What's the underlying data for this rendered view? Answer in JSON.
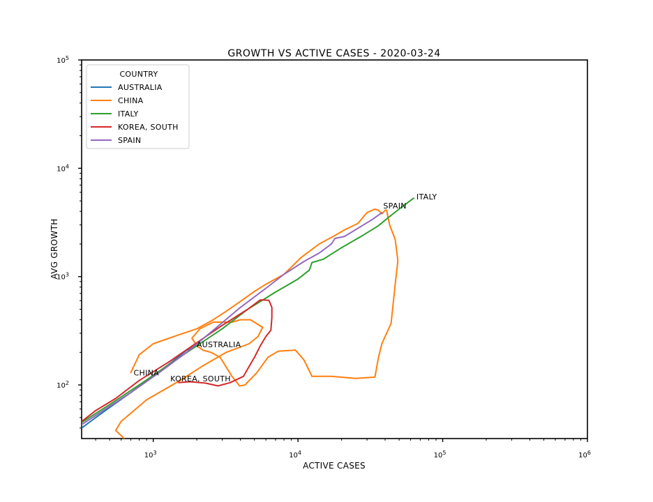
{
  "chart_data": {
    "type": "line",
    "title": "GROWTH VS ACTIVE CASES - 2020-03-24",
    "xlabel": "ACTIVE CASES",
    "ylabel": "AVG GROWTH",
    "xscale": "log",
    "yscale": "log",
    "xlim": [
      320,
      1000000
    ],
    "ylim": [
      32,
      100000
    ],
    "x_ticks": [
      {
        "value": 1000,
        "base": "10",
        "exp": "3"
      },
      {
        "value": 10000,
        "base": "10",
        "exp": "4"
      },
      {
        "value": 100000,
        "base": "10",
        "exp": "5"
      },
      {
        "value": 1000000,
        "base": "10",
        "exp": "6"
      }
    ],
    "y_ticks": [
      {
        "value": 100,
        "base": "10",
        "exp": "2"
      },
      {
        "value": 1000,
        "base": "10",
        "exp": "3"
      },
      {
        "value": 10000,
        "base": "10",
        "exp": "4"
      },
      {
        "value": 100000,
        "base": "10",
        "exp": "5"
      }
    ],
    "grid": false,
    "legend": {
      "title": "COUNTRY",
      "placement": "top-left"
    },
    "series": [
      {
        "name": "AUSTRALIA",
        "color": "#1f77b4",
        "annotation": "AUSTRALIA",
        "x": [
          320,
          400,
          500,
          700,
          1000,
          1400,
          1700,
          1950
        ],
        "y": [
          40,
          50,
          62,
          85,
          120,
          170,
          210,
          230
        ]
      },
      {
        "name": "CHINA",
        "color": "#ff7f0e",
        "annotation": "CHINA",
        "x": [
          630,
          550,
          600,
          900,
          1500,
          2200,
          3200,
          4600,
          5300,
          5700,
          4700,
          4000,
          3500,
          2600,
          2100,
          1850,
          2000,
          2200,
          2500,
          2900,
          3500,
          3950,
          4300,
          5200,
          6200,
          7300,
          9600,
          11000,
          12500,
          17000,
          25000,
          34000,
          36000,
          38000,
          40000,
          44000,
          47000,
          49000,
          47000,
          43000,
          41000,
          40000,
          38000,
          36000,
          34000,
          30000,
          26000,
          21000,
          18000,
          14000,
          10500,
          8000,
          6000,
          5000,
          4000,
          3200,
          2600,
          2000,
          1500,
          1000,
          800,
          700
        ],
        "y": [
          32,
          38,
          46,
          73,
          108,
          150,
          200,
          240,
          280,
          340,
          400,
          400,
          380,
          380,
          330,
          270,
          230,
          210,
          200,
          180,
          120,
          98,
          100,
          130,
          180,
          205,
          210,
          170,
          120,
          120,
          115,
          118,
          180,
          240,
          280,
          370,
          850,
          1400,
          2200,
          3000,
          4100,
          4100,
          3800,
          4100,
          4200,
          3900,
          3100,
          2700,
          2400,
          2000,
          1500,
          1050,
          850,
          730,
          590,
          480,
          400,
          330,
          290,
          240,
          190,
          130
        ]
      },
      {
        "name": "ITALY",
        "color": "#2ca02c",
        "annotation": "ITALY",
        "x": [
          320,
          500,
          800,
          1200,
          2000,
          3000,
          4500,
          7000,
          10000,
          12000,
          12500,
          15000,
          20000,
          28000,
          36000,
          42000,
          50000,
          57000,
          63000
        ],
        "y": [
          45,
          66,
          100,
          145,
          230,
          330,
          500,
          720,
          950,
          1150,
          1350,
          1450,
          1850,
          2400,
          2950,
          3500,
          4200,
          4800,
          5300
        ]
      },
      {
        "name": "KOREA, SOUTH",
        "color": "#d62728",
        "annotation": "KOREA, SOUTH",
        "x": [
          320,
          400,
          550,
          800,
          1300,
          2000,
          3000,
          4500,
          5500,
          6300,
          6600,
          6600,
          6500,
          6000,
          5500,
          5000,
          4200,
          3400,
          2800,
          2300,
          1800,
          1500
        ],
        "y": [
          46,
          58,
          75,
          110,
          165,
          245,
          355,
          500,
          610,
          605,
          520,
          420,
          320,
          280,
          230,
          180,
          120,
          105,
          98,
          104,
          107,
          105
        ]
      },
      {
        "name": "SPAIN",
        "color": "#9467bd",
        "annotation": "SPAIN",
        "x": [
          320,
          450,
          700,
          1100,
          1700,
          2600,
          4000,
          6000,
          8000,
          11000,
          14000,
          17000,
          18000,
          21000,
          26000,
          33000,
          38000
        ],
        "y": [
          43,
          58,
          85,
          130,
          200,
          320,
          520,
          780,
          1050,
          1380,
          1650,
          2000,
          2250,
          2350,
          2800,
          3400,
          3900
        ]
      }
    ]
  }
}
